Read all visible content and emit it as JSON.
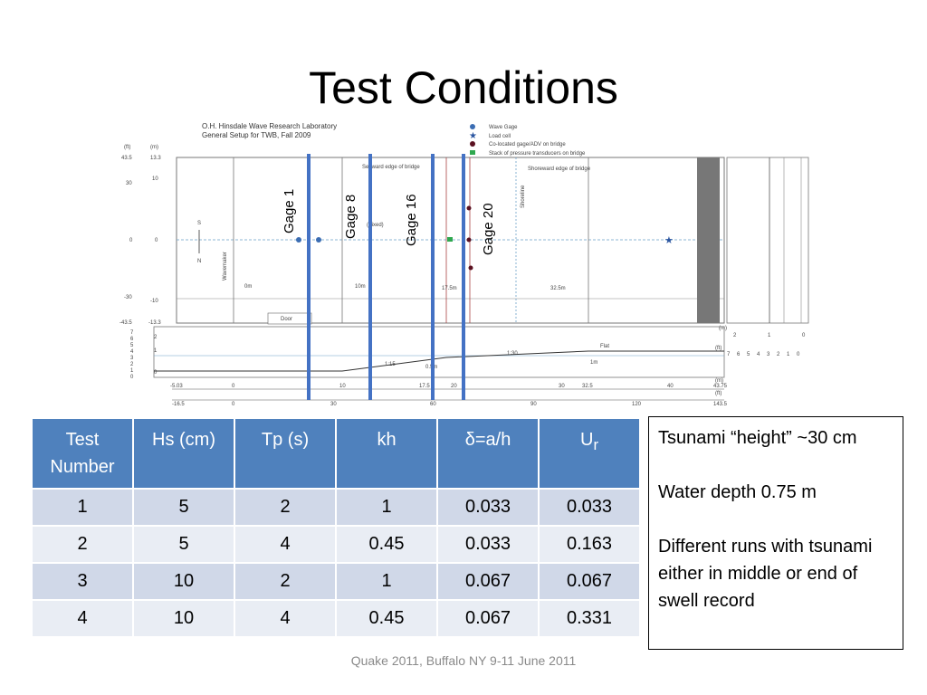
{
  "slide": {
    "title": "Test Conditions",
    "footer": "Quake 2011, Buffalo NY 9-11 June 2011"
  },
  "figure": {
    "lab_title_line1": "O.H. Hinsdale Wave Research Laboratory",
    "lab_title_line2": "General Setup for TWB, Fall 2009",
    "legend": [
      "Wave Gage",
      "Load cell",
      "Co-located gage/ADV on bridge",
      "Stack of pressure transducers on bridge"
    ],
    "gage_labels": [
      "Gage 1",
      "Gage 8",
      "Gage 16",
      "Gage 20"
    ],
    "plan_labels": {
      "seaward": "Seaward edge of bridge",
      "shoreward": "Shoreward edge of bridge",
      "shoreline": "Shoreline",
      "wavemaker": "Wavemaker",
      "door": "Door",
      "fixed": "(Fixed)",
      "s": "S",
      "n": "N",
      "d0": "0m",
      "d10": "10m",
      "d17": "17.5m",
      "d32": "32.5m"
    },
    "profile_labels": {
      "flat": "Flat",
      "slope1": "1:15",
      "slope2": "1:30",
      "depth1": "0.5m",
      "depth2": "1m"
    },
    "left_axis_ft": [
      "(ft)",
      "43.5",
      "30",
      "0",
      "-30",
      "-43.5"
    ],
    "left_axis_m": [
      "(m)",
      "13.3",
      "10",
      "0",
      "-10",
      "-13.3"
    ],
    "profile_axis_ft": [
      "7",
      "6",
      "5",
      "4",
      "3",
      "2",
      "1",
      "0"
    ],
    "profile_axis_m": [
      "2",
      "1",
      "0"
    ],
    "bottom_axis_m": [
      "-5.03",
      "0",
      "10",
      "17.5",
      "20",
      "30",
      "32.5",
      "40",
      "43.75"
    ],
    "bottom_axis_ft": [
      "-16.5",
      "0",
      "30",
      "60",
      "90",
      "120",
      "143.5"
    ],
    "bottom_unit_m": "(m)",
    "bottom_unit_ft": "(ft)",
    "right_axis_m": [
      "(m)",
      "2",
      "1",
      "0"
    ],
    "right_axis_ft": [
      "(ft)",
      "7",
      "6",
      "5",
      "4",
      "3",
      "2",
      "1",
      "0"
    ]
  },
  "table": {
    "headers": {
      "test_number": "Test Number",
      "hs": "Hs (cm)",
      "tp": "Tp (s)",
      "kh": "kh",
      "delta_symbol": "δ",
      "delta_rest": "=a/h",
      "ur_main": "U",
      "ur_sub": "r"
    },
    "rows": [
      {
        "test": "1",
        "hs": "5",
        "tp": "2",
        "kh": "1",
        "delta": "0.033",
        "ur": "0.033"
      },
      {
        "test": "2",
        "hs": "5",
        "tp": "4",
        "kh": "0.45",
        "delta": "0.033",
        "ur": "0.163"
      },
      {
        "test": "3",
        "hs": "10",
        "tp": "2",
        "kh": "1",
        "delta": "0.067",
        "ur": "0.067"
      },
      {
        "test": "4",
        "hs": "10",
        "tp": "4",
        "kh": "0.45",
        "delta": "0.067",
        "ur": "0.331"
      }
    ]
  },
  "notes": [
    "Tsunami “height” ~30 cm",
    "Water depth 0.75 m",
    "Different runs with tsunami either in middle or end of swell record"
  ],
  "colors": {
    "header_blue": "#4f81bd",
    "row_dark": "#d0d8e8",
    "row_light": "#e9edf4",
    "gage_line": "#4472c4"
  }
}
